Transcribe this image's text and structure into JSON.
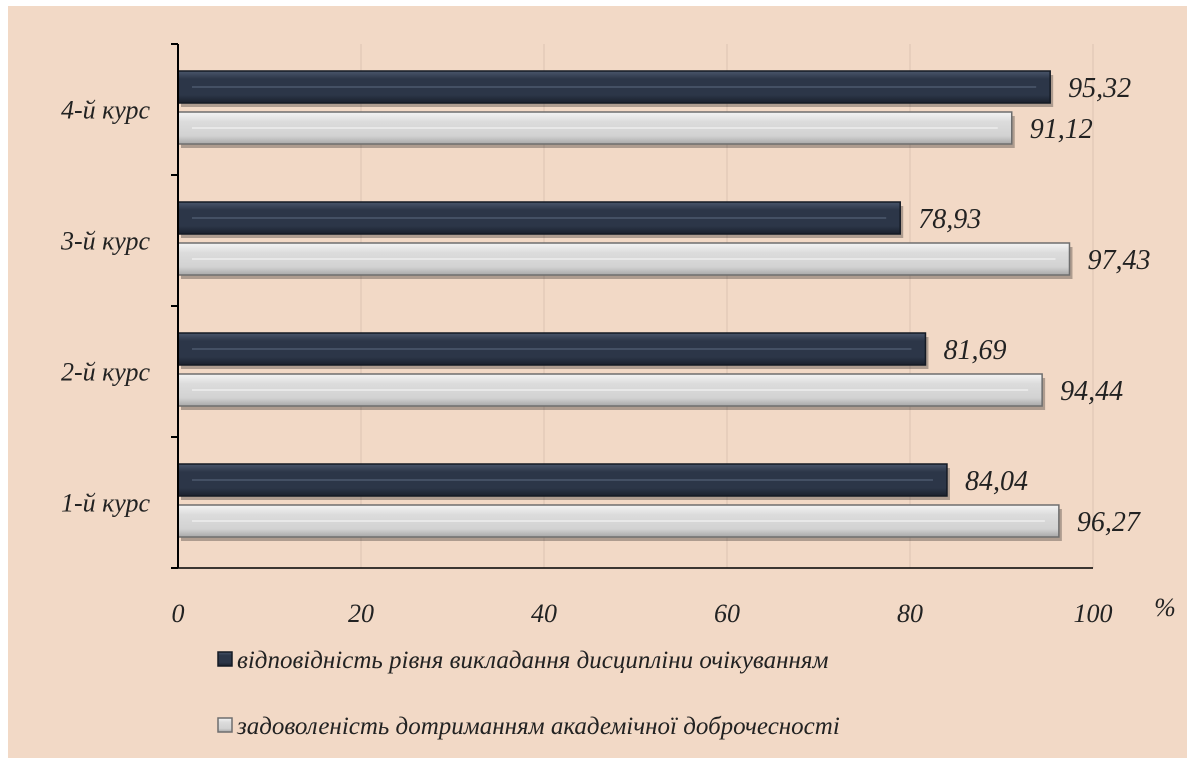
{
  "chart_data": {
    "type": "bar",
    "orientation": "horizontal",
    "categories": [
      "1-й курс",
      "2-й курс",
      "3-й курс",
      "4-й курс"
    ],
    "series": [
      {
        "name": "відповідність рівня викладання дисципліни очікуванням",
        "values": [
          84.04,
          81.69,
          78.93,
          95.32
        ],
        "labels": [
          "84,04",
          "81,69",
          "78,93",
          "95,32"
        ],
        "color": "#2b3547"
      },
      {
        "name": "задоволеність дотриманням академічної доброчесності",
        "values": [
          96.27,
          94.44,
          97.43,
          91.12
        ],
        "labels": [
          "96,27",
          "94,44",
          "97,43",
          "91,12"
        ],
        "color": "#d9d9d9"
      }
    ],
    "xlim": [
      0,
      100
    ],
    "xticks": [
      "0",
      "20",
      "40",
      "60",
      "80",
      "100"
    ],
    "xunit": "%",
    "grid": true,
    "legend": "bottom",
    "background": "#f2d9c6"
  }
}
